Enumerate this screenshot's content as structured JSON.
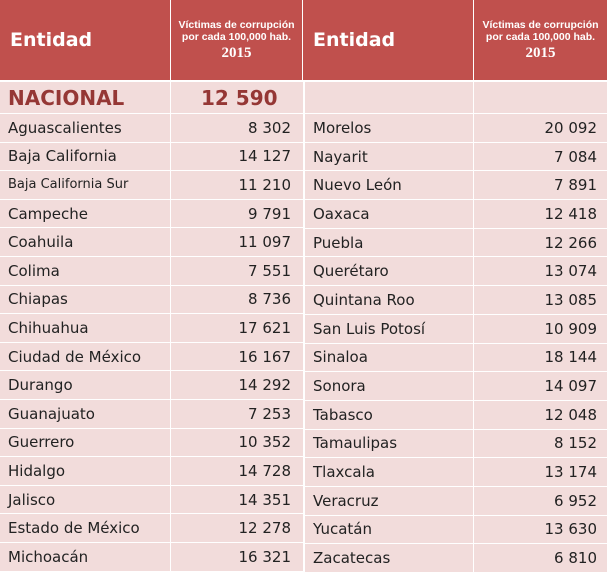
{
  "header": {
    "left_entity": "Entidad",
    "left_value_label": "Víctimas de corrupción por cada 100,000 hab.",
    "left_year": "2015",
    "right_entity": "Entidad",
    "right_value_label": "Víctimas de corrupción por cada 100,000 hab.",
    "right_year": "2015"
  },
  "national": {
    "label": "NACIONAL",
    "value": "12 590"
  },
  "left_rows": [
    {
      "name": "Aguascalientes",
      "value": "8 302"
    },
    {
      "name": "Baja California",
      "value": "14 127"
    },
    {
      "name": "Baja California Sur",
      "value": "11 210"
    },
    {
      "name": "Campeche",
      "value": "9 791"
    },
    {
      "name": "Coahuila",
      "value": "11 097"
    },
    {
      "name": "Colima",
      "value": "7 551"
    },
    {
      "name": "Chiapas",
      "value": "8 736"
    },
    {
      "name": "Chihuahua",
      "value": "17 621"
    },
    {
      "name": "Ciudad de México",
      "value": "16 167"
    },
    {
      "name": "Durango",
      "value": "14 292"
    },
    {
      "name": "Guanajuato",
      "value": "7 253"
    },
    {
      "name": "Guerrero",
      "value": "10 352"
    },
    {
      "name": "Hidalgo",
      "value": "14 728"
    },
    {
      "name": "Jalisco",
      "value": "14 351"
    },
    {
      "name": "Estado de México",
      "value": "12 278"
    },
    {
      "name": "Michoacán",
      "value": "16 321"
    }
  ],
  "right_rows": [
    {
      "name": "Morelos",
      "value": "20 092"
    },
    {
      "name": "Nayarit",
      "value": "7 084"
    },
    {
      "name": "Nuevo León",
      "value": "7 891"
    },
    {
      "name": "Oaxaca",
      "value": "12 418"
    },
    {
      "name": "Puebla",
      "value": "12 266"
    },
    {
      "name": "Querétaro",
      "value": "13 074"
    },
    {
      "name": "Quintana Roo",
      "value": "13 085"
    },
    {
      "name": "San Luis Potosí",
      "value": "10 909"
    },
    {
      "name": "Sinaloa",
      "value": "18 144"
    },
    {
      "name": "Sonora",
      "value": "14 097"
    },
    {
      "name": "Tabasco",
      "value": "12 048"
    },
    {
      "name": "Tamaulipas",
      "value": "8 152"
    },
    {
      "name": "Tlaxcala",
      "value": "13 174"
    },
    {
      "name": "Veracruz",
      "value": "6 952"
    },
    {
      "name": "Yucatán",
      "value": "13 630"
    },
    {
      "name": "Zacatecas",
      "value": "6 810"
    }
  ],
  "colors": {
    "header_bg": "#c0504d",
    "row_bg": "#f2dcdb",
    "national_text": "#953735"
  }
}
